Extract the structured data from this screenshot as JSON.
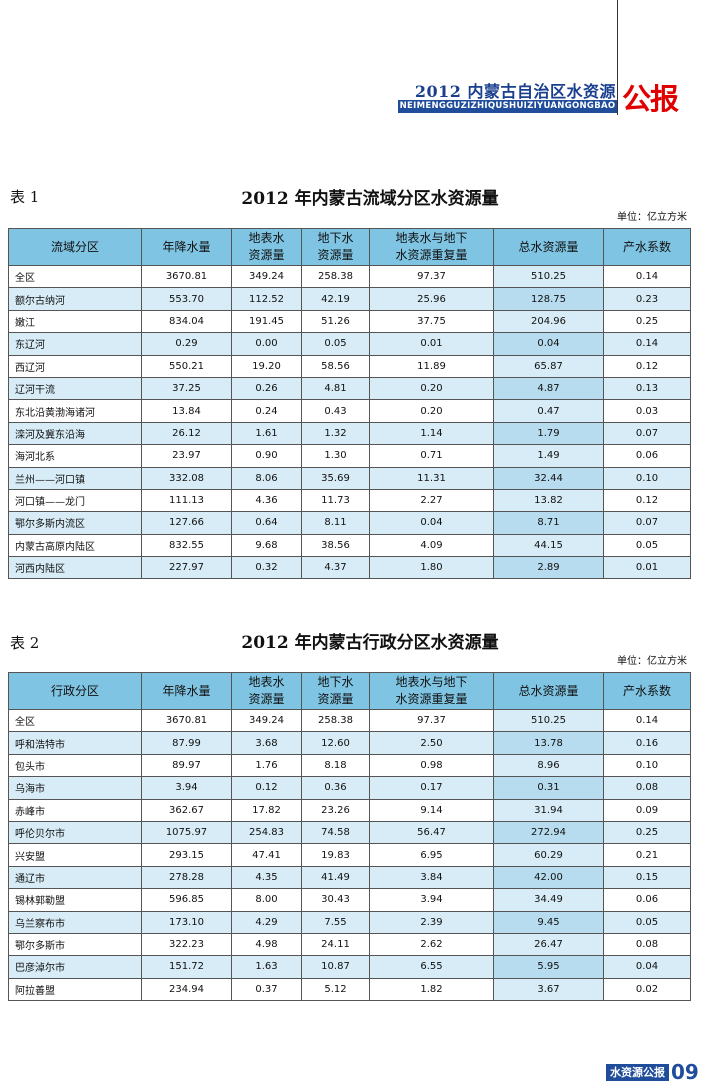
{
  "header": {
    "title": "2012 内蒙古自治区水资源",
    "subtitle": "NEIMENGGUZIZHIQUSHUIZIYUANGONGBAO",
    "badge": "公报"
  },
  "columns": [
    "",
    "年降水量",
    "地表水资源量",
    "地下水资源量",
    "地表水与地下水资源重复量",
    "总水资源量",
    "产水系数"
  ],
  "column_parts": {
    "surface": [
      "地表水",
      "资源量"
    ],
    "ground": [
      "地下水",
      "资源量"
    ],
    "overlap": [
      "地表水与地下",
      "水资源重复量"
    ]
  },
  "table1": {
    "label": "表 1",
    "title": "2012 年内蒙古流域分区水资源量",
    "unit": "单位：亿立方米",
    "first_col": "流域分区",
    "rows": [
      [
        "全区",
        "3670.81",
        "349.24",
        "258.38",
        "97.37",
        "510.25",
        "0.14"
      ],
      [
        "额尔古纳河",
        "553.70",
        "112.52",
        "42.19",
        "25.96",
        "128.75",
        "0.23"
      ],
      [
        "嫩江",
        "834.04",
        "191.45",
        "51.26",
        "37.75",
        "204.96",
        "0.25"
      ],
      [
        "东辽河",
        "0.29",
        "0.00",
        "0.05",
        "0.01",
        "0.04",
        "0.14"
      ],
      [
        "西辽河",
        "550.21",
        "19.20",
        "58.56",
        "11.89",
        "65.87",
        "0.12"
      ],
      [
        "辽河干流",
        "37.25",
        "0.26",
        "4.81",
        "0.20",
        "4.87",
        "0.13"
      ],
      [
        "东北沿黄渤海诸河",
        "13.84",
        "0.24",
        "0.43",
        "0.20",
        "0.47",
        "0.03"
      ],
      [
        "滦河及冀东沿海",
        "26.12",
        "1.61",
        "1.32",
        "1.14",
        "1.79",
        "0.07"
      ],
      [
        "海河北系",
        "23.97",
        "0.90",
        "1.30",
        "0.71",
        "1.49",
        "0.06"
      ],
      [
        "兰州——河口镇",
        "332.08",
        "8.06",
        "35.69",
        "11.31",
        "32.44",
        "0.10"
      ],
      [
        "河口镇——龙门",
        "111.13",
        "4.36",
        "11.73",
        "2.27",
        "13.82",
        "0.12"
      ],
      [
        "鄂尔多斯内流区",
        "127.66",
        "0.64",
        "8.11",
        "0.04",
        "8.71",
        "0.07"
      ],
      [
        "内蒙古高原内陆区",
        "832.55",
        "9.68",
        "38.56",
        "4.09",
        "44.15",
        "0.05"
      ],
      [
        "河西内陆区",
        "227.97",
        "0.32",
        "4.37",
        "1.80",
        "2.89",
        "0.01"
      ]
    ]
  },
  "table2": {
    "label": "表 2",
    "title": "2012 年内蒙古行政分区水资源量",
    "unit": "单位：亿立方米",
    "first_col": "行政分区",
    "rows": [
      [
        "全区",
        "3670.81",
        "349.24",
        "258.38",
        "97.37",
        "510.25",
        "0.14"
      ],
      [
        "呼和浩特市",
        "87.99",
        "3.68",
        "12.60",
        "2.50",
        "13.78",
        "0.16"
      ],
      [
        "包头市",
        "89.97",
        "1.76",
        "8.18",
        "0.98",
        "8.96",
        "0.10"
      ],
      [
        "乌海市",
        "3.94",
        "0.12",
        "0.36",
        "0.17",
        "0.31",
        "0.08"
      ],
      [
        "赤峰市",
        "362.67",
        "17.82",
        "23.26",
        "9.14",
        "31.94",
        "0.09"
      ],
      [
        "呼伦贝尔市",
        "1075.97",
        "254.83",
        "74.58",
        "56.47",
        "272.94",
        "0.25"
      ],
      [
        "兴安盟",
        "293.15",
        "47.41",
        "19.83",
        "6.95",
        "60.29",
        "0.21"
      ],
      [
        "通辽市",
        "278.28",
        "4.35",
        "41.49",
        "3.84",
        "42.00",
        "0.15"
      ],
      [
        "锡林郭勒盟",
        "596.85",
        "8.00",
        "30.43",
        "3.94",
        "34.49",
        "0.06"
      ],
      [
        "乌兰察布市",
        "173.10",
        "4.29",
        "7.55",
        "2.39",
        "9.45",
        "0.05"
      ],
      [
        "鄂尔多斯市",
        "322.23",
        "4.98",
        "24.11",
        "2.62",
        "26.47",
        "0.08"
      ],
      [
        "巴彦淖尔市",
        "151.72",
        "1.63",
        "10.87",
        "6.55",
        "5.95",
        "0.04"
      ],
      [
        "阿拉善盟",
        "234.94",
        "0.37",
        "5.12",
        "1.82",
        "3.67",
        "0.02"
      ]
    ]
  },
  "footer": {
    "label": "水资源公报",
    "page": "09"
  }
}
